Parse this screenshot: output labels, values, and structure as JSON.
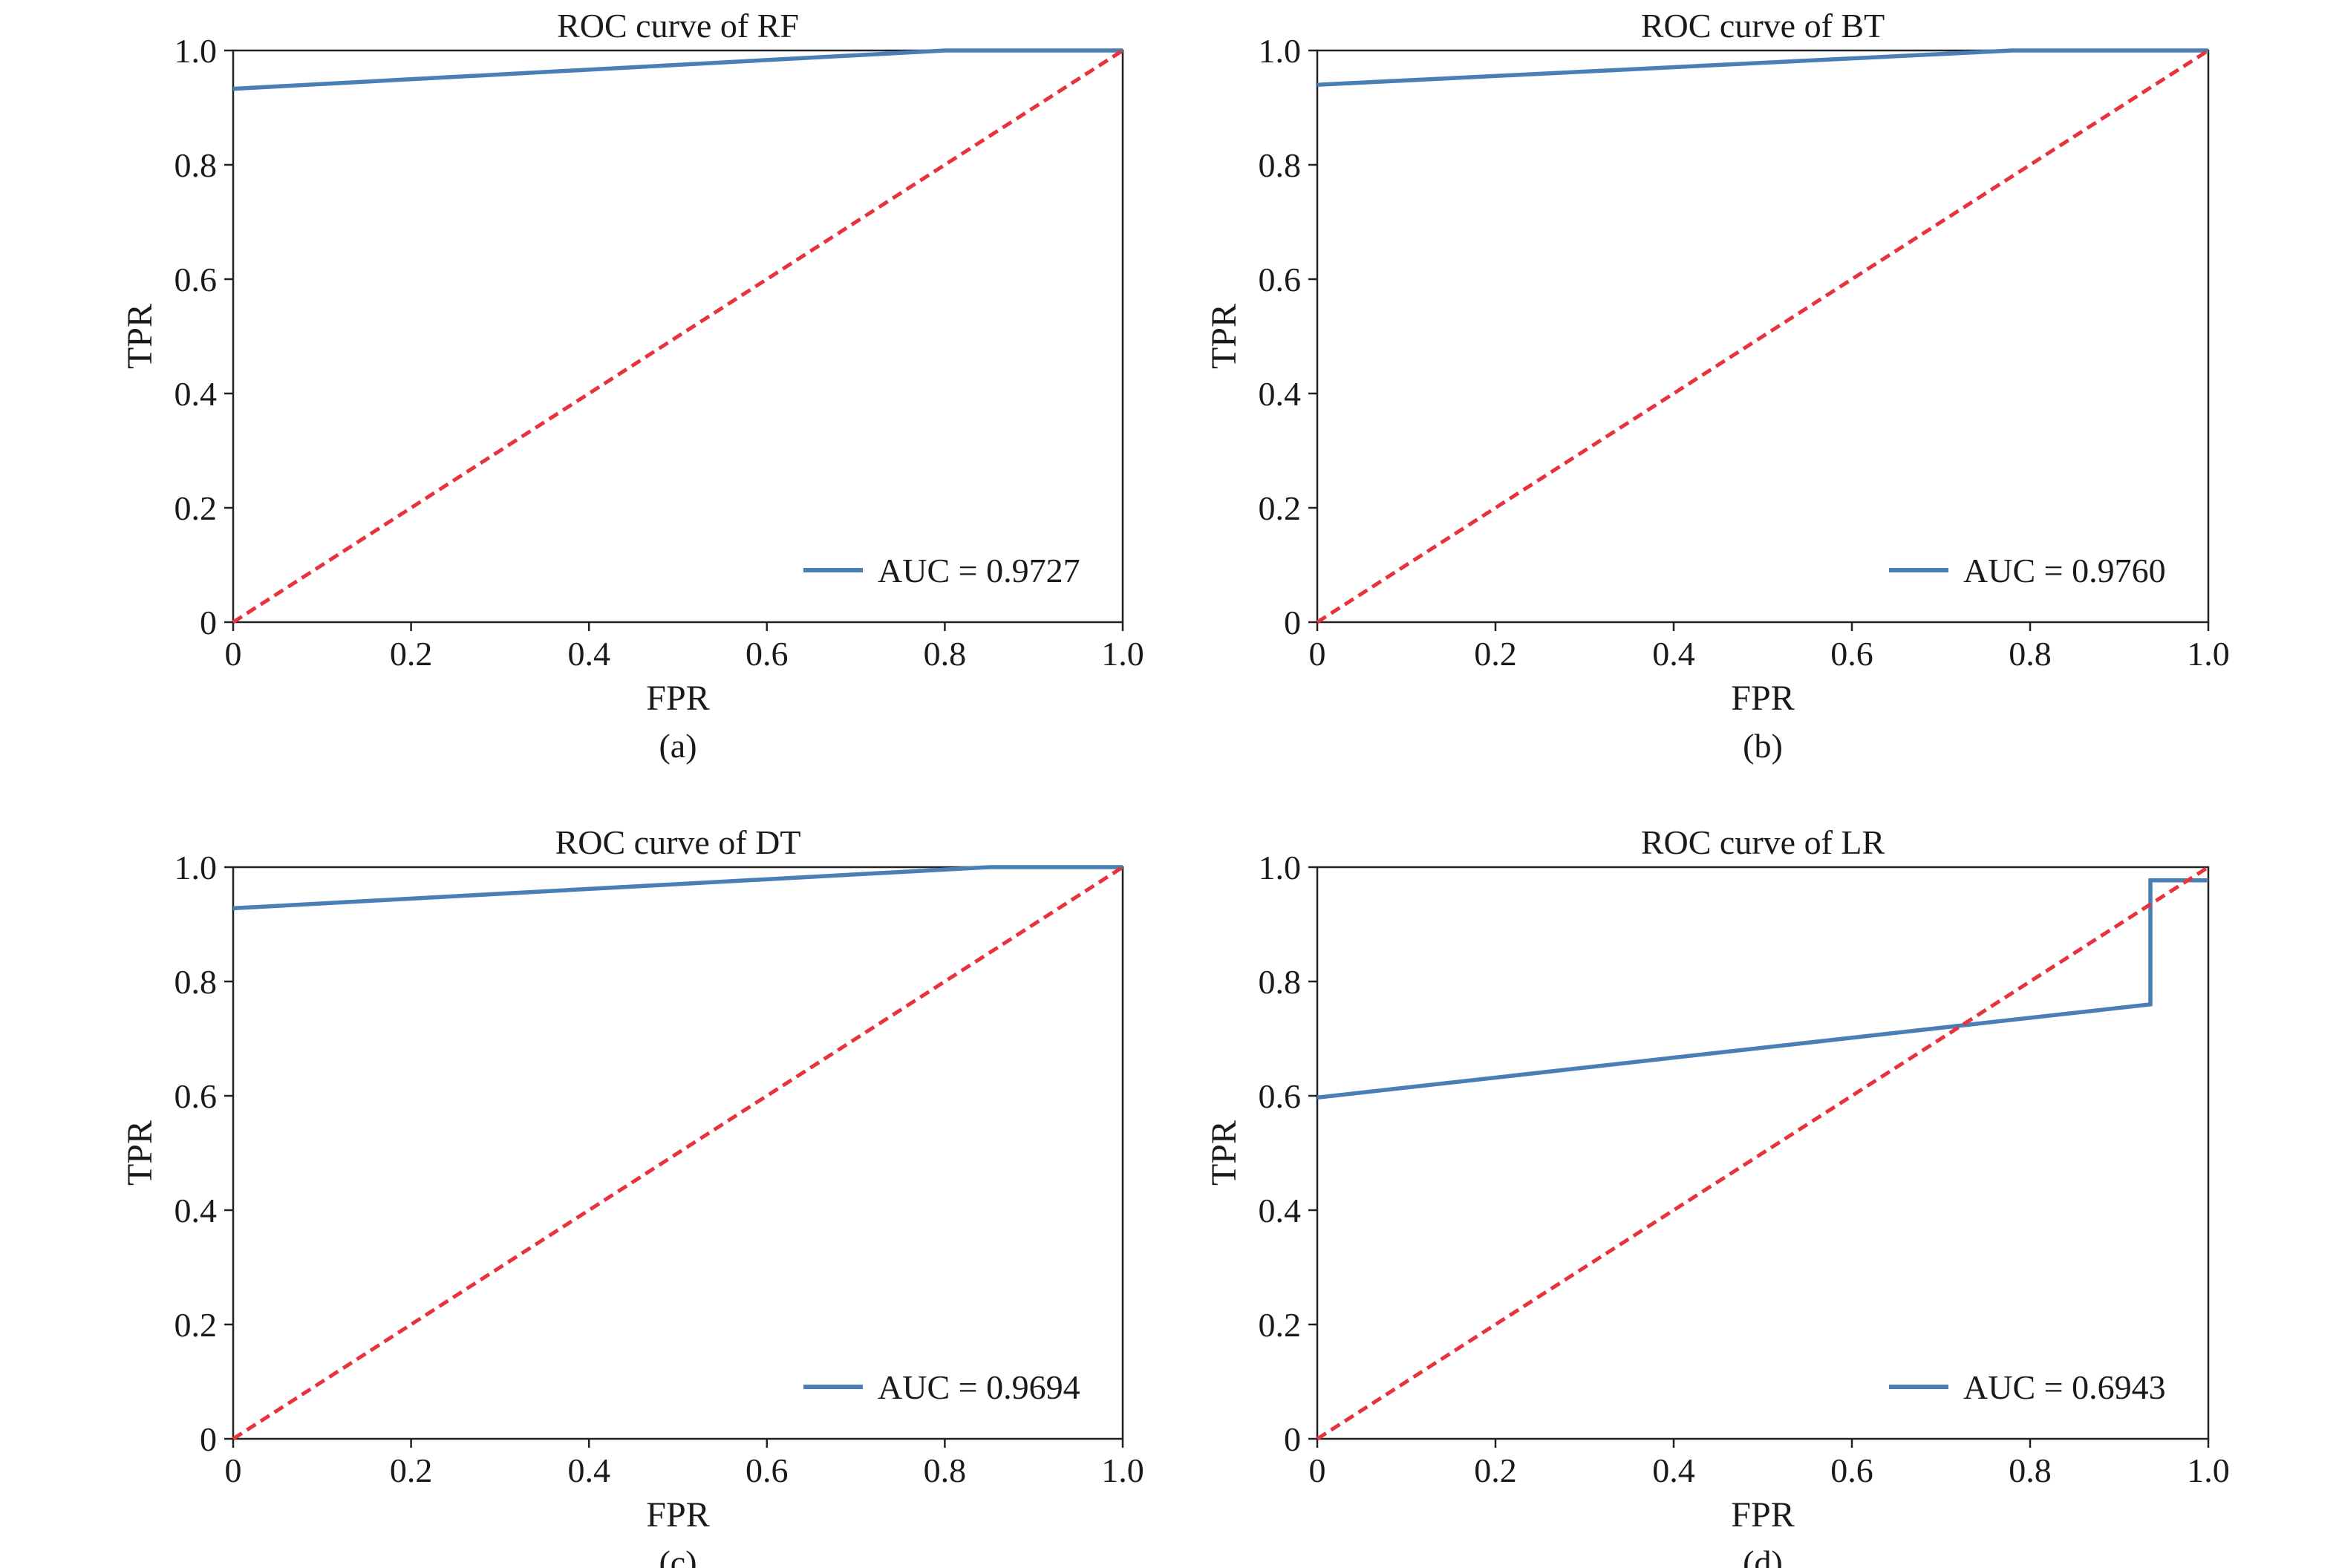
{
  "chart_data": [
    {
      "type": "line",
      "title": "ROC curve of RF",
      "caption": "(a)",
      "xlabel": "FPR",
      "ylabel": "TPR",
      "xlim": [
        0,
        1.0
      ],
      "ylim": [
        0,
        1.0
      ],
      "x_ticks": [
        "0",
        "0.2",
        "0.4",
        "0.6",
        "0.8",
        "1.0"
      ],
      "y_ticks": [
        "0",
        "0.2",
        "0.4",
        "0.6",
        "0.8",
        "1.0"
      ],
      "grid": false,
      "legend_position": "lower-right",
      "series": [
        {
          "name": "AUC = 0.9727",
          "color": "#4a7fb5",
          "style": "solid",
          "x": [
            0.0,
            0.8,
            1.0
          ],
          "y": [
            0.933,
            1.0,
            1.0
          ]
        },
        {
          "color": "#e8323c",
          "style": "dashed",
          "x": [
            0.0,
            1.0
          ],
          "y": [
            0.0,
            1.0
          ]
        }
      ]
    },
    {
      "type": "line",
      "title": "ROC curve of BT",
      "caption": "(b)",
      "xlabel": "FPR",
      "ylabel": "TPR",
      "xlim": [
        0,
        1.0
      ],
      "ylim": [
        0,
        1.0
      ],
      "x_ticks": [
        "0",
        "0.2",
        "0.4",
        "0.6",
        "0.8",
        "1.0"
      ],
      "y_ticks": [
        "0",
        "0.2",
        "0.4",
        "0.6",
        "0.8",
        "1.0"
      ],
      "grid": false,
      "legend_position": "lower-right",
      "series": [
        {
          "name": "AUC = 0.9760",
          "color": "#4a7fb5",
          "style": "solid",
          "x": [
            0.0,
            0.78,
            1.0
          ],
          "y": [
            0.94,
            1.0,
            1.0
          ]
        },
        {
          "color": "#e8323c",
          "style": "dashed",
          "x": [
            0.0,
            1.0
          ],
          "y": [
            0.0,
            1.0
          ]
        }
      ]
    },
    {
      "type": "line",
      "title": "ROC curve of DT",
      "caption": "(c)",
      "xlabel": "FPR",
      "ylabel": "TPR",
      "xlim": [
        0,
        1.0
      ],
      "ylim": [
        0,
        1.0
      ],
      "x_ticks": [
        "0",
        "0.2",
        "0.4",
        "0.6",
        "0.8",
        "1.0"
      ],
      "y_ticks": [
        "0",
        "0.2",
        "0.4",
        "0.6",
        "0.8",
        "1.0"
      ],
      "grid": false,
      "legend_position": "lower-right",
      "series": [
        {
          "name": "AUC = 0.9694",
          "color": "#4a7fb5",
          "style": "solid",
          "x": [
            0.0,
            0.85,
            1.0
          ],
          "y": [
            0.928,
            1.0,
            1.0
          ]
        },
        {
          "color": "#e8323c",
          "style": "dashed",
          "x": [
            0.0,
            1.0
          ],
          "y": [
            0.0,
            1.0
          ]
        }
      ]
    },
    {
      "type": "line",
      "title": "ROC curve of LR",
      "caption": "(d)",
      "xlabel": "FPR",
      "ylabel": "TPR",
      "xlim": [
        0,
        1.0
      ],
      "ylim": [
        0,
        1.0
      ],
      "x_ticks": [
        "0",
        "0.2",
        "0.4",
        "0.6",
        "0.8",
        "1.0"
      ],
      "y_ticks": [
        "0",
        "0.2",
        "0.4",
        "0.6",
        "0.8",
        "1.0"
      ],
      "grid": false,
      "legend_position": "lower-right",
      "series": [
        {
          "name": "AUC = 0.6943",
          "color": "#4a7fb5",
          "style": "solid",
          "x": [
            0.0,
            0.935,
            0.935,
            1.0
          ],
          "y": [
            0.597,
            0.76,
            0.977,
            0.977
          ]
        },
        {
          "color": "#e8323c",
          "style": "dashed",
          "x": [
            0.0,
            1.0
          ],
          "y": [
            0.0,
            1.0
          ]
        }
      ]
    }
  ]
}
